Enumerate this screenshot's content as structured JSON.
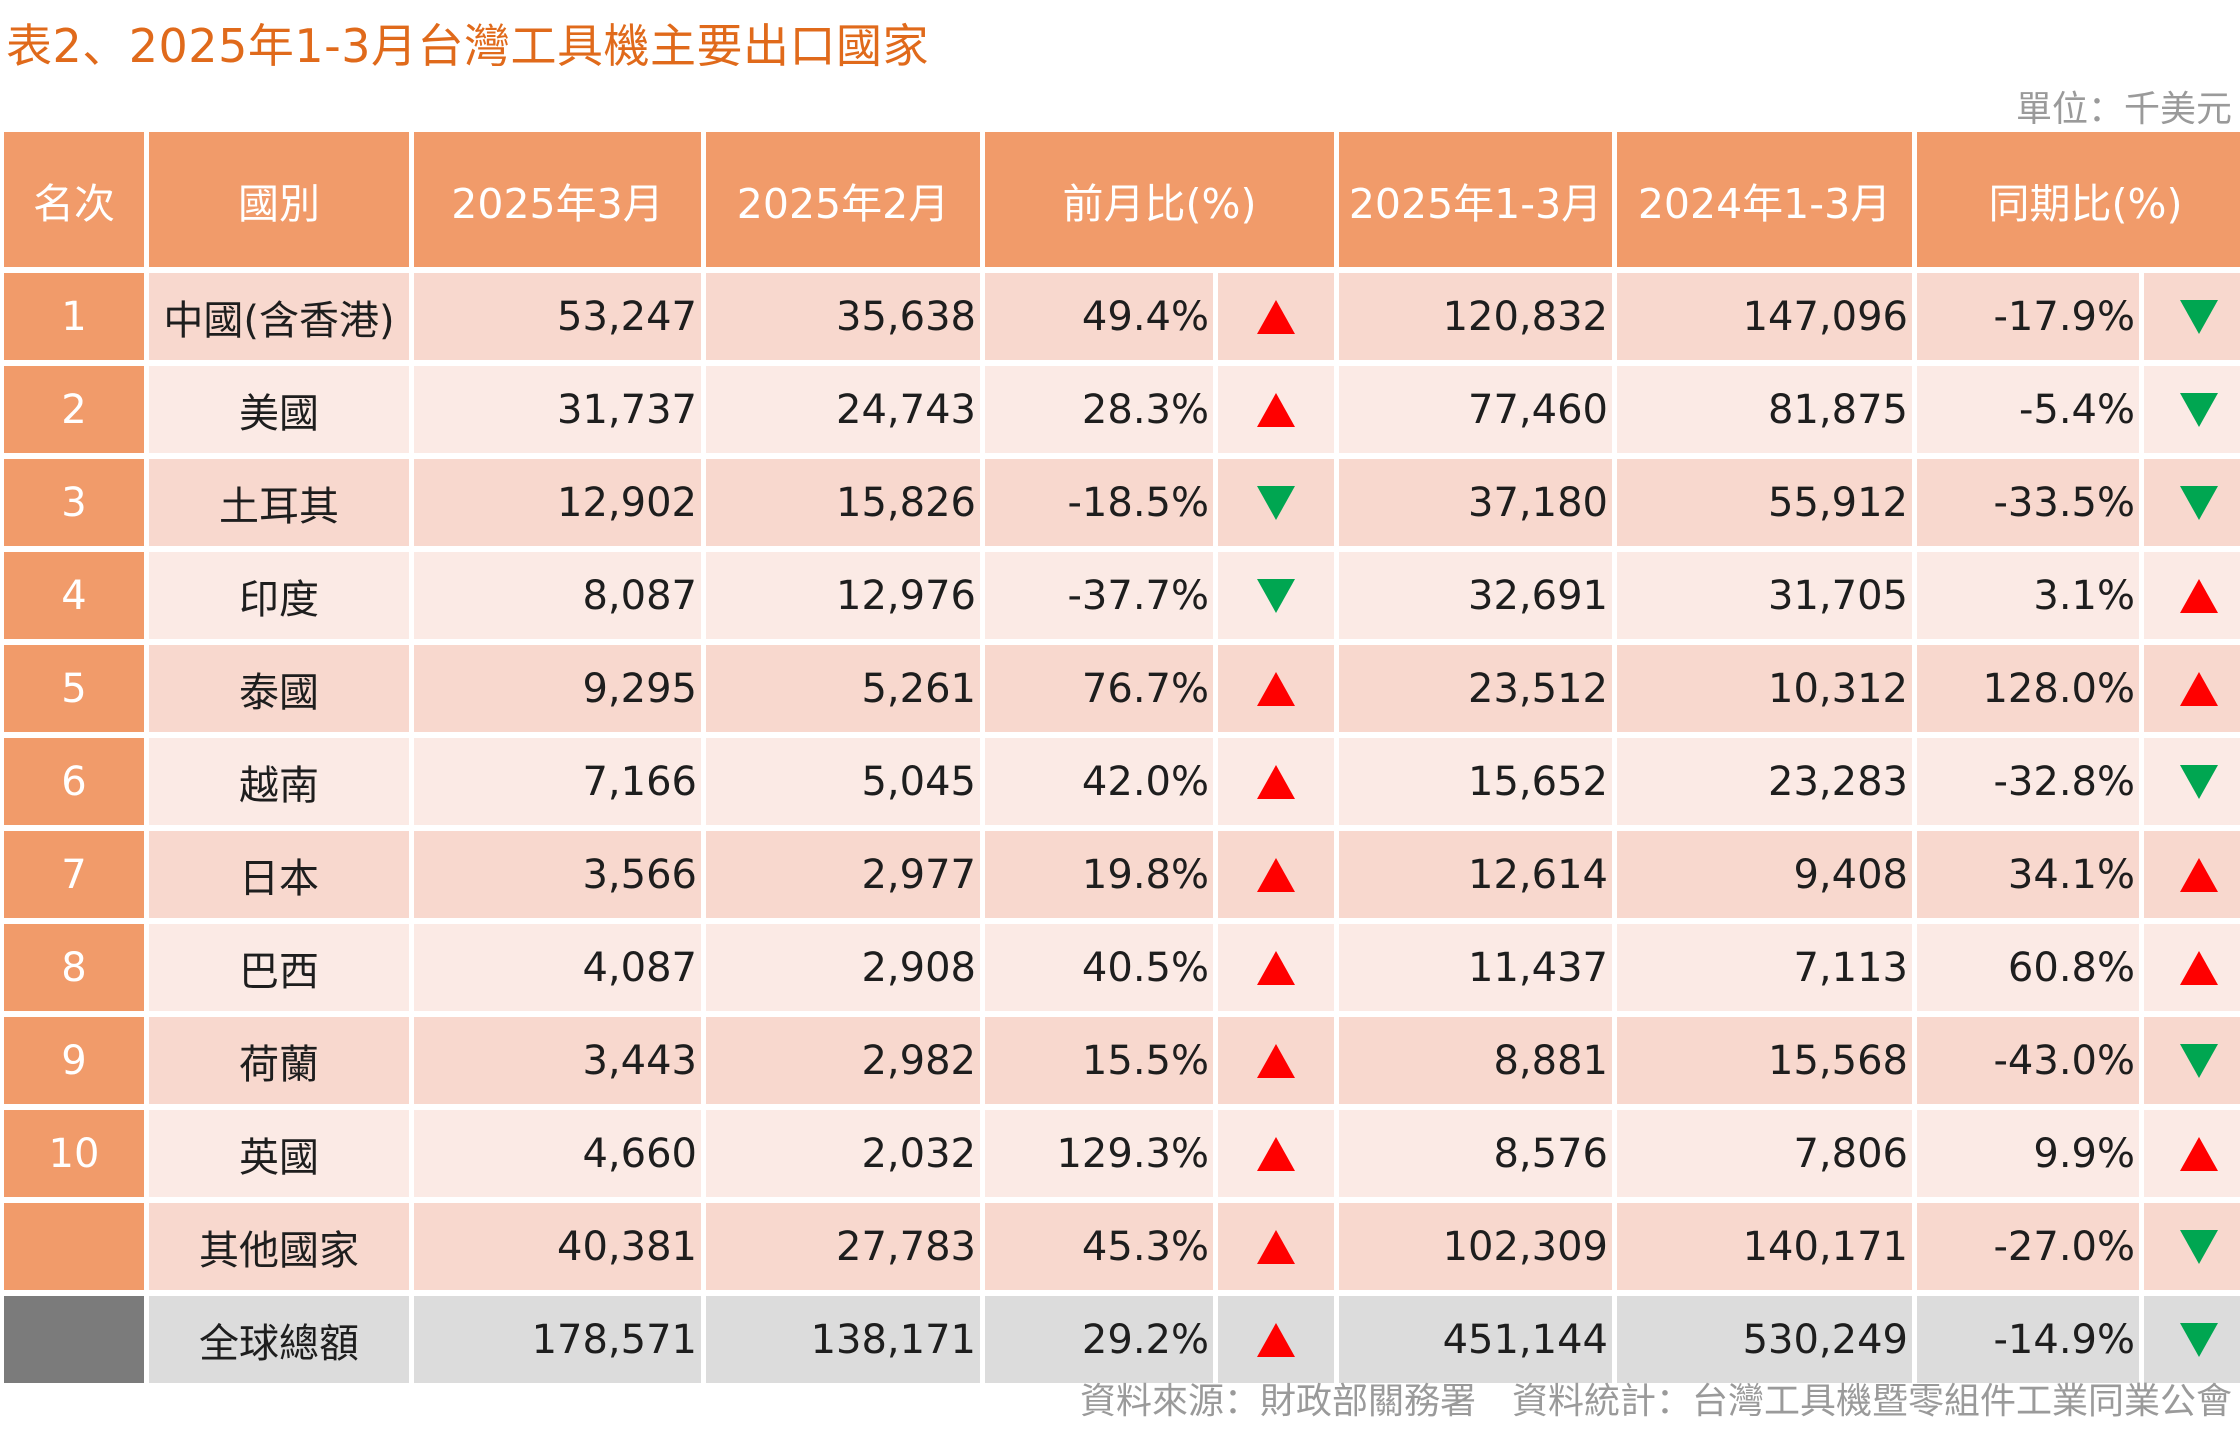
{
  "title": "表2、2025年1-3月台灣工具機主要出口國家",
  "unit": "單位：千美元",
  "source": "資料來源：財政部關務署　資料統計：台灣工具機暨零組件工業同業公會",
  "headers": {
    "rank": "名次",
    "country": "國別",
    "mar2025": "2025年3月",
    "feb2025": "2025年2月",
    "mom": "前月比(%)",
    "q1_2025": "2025年1-3月",
    "q1_2024": "2024年1-3月",
    "yoy": "同期比(%)"
  },
  "colors": {
    "header_bg": "#f19b6a",
    "up": "#ff0000",
    "down": "#00a651",
    "total_rank_bg": "#7b7b7b"
  },
  "rows": [
    {
      "rank": "1",
      "country": "中國(含香港)",
      "mar": "53,247",
      "feb": "35,638",
      "mom": "49.4%",
      "mom_dir": "up",
      "q1_2025": "120,832",
      "q1_2024": "147,096",
      "yoy": "-17.9%",
      "yoy_dir": "down"
    },
    {
      "rank": "2",
      "country": "美國",
      "mar": "31,737",
      "feb": "24,743",
      "mom": "28.3%",
      "mom_dir": "up",
      "q1_2025": "77,460",
      "q1_2024": "81,875",
      "yoy": "-5.4%",
      "yoy_dir": "down"
    },
    {
      "rank": "3",
      "country": "土耳其",
      "mar": "12,902",
      "feb": "15,826",
      "mom": "-18.5%",
      "mom_dir": "down",
      "q1_2025": "37,180",
      "q1_2024": "55,912",
      "yoy": "-33.5%",
      "yoy_dir": "down"
    },
    {
      "rank": "4",
      "country": "印度",
      "mar": "8,087",
      "feb": "12,976",
      "mom": "-37.7%",
      "mom_dir": "down",
      "q1_2025": "32,691",
      "q1_2024": "31,705",
      "yoy": "3.1%",
      "yoy_dir": "up"
    },
    {
      "rank": "5",
      "country": "泰國",
      "mar": "9,295",
      "feb": "5,261",
      "mom": "76.7%",
      "mom_dir": "up",
      "q1_2025": "23,512",
      "q1_2024": "10,312",
      "yoy": "128.0%",
      "yoy_dir": "up"
    },
    {
      "rank": "6",
      "country": "越南",
      "mar": "7,166",
      "feb": "5,045",
      "mom": "42.0%",
      "mom_dir": "up",
      "q1_2025": "15,652",
      "q1_2024": "23,283",
      "yoy": "-32.8%",
      "yoy_dir": "down"
    },
    {
      "rank": "7",
      "country": "日本",
      "mar": "3,566",
      "feb": "2,977",
      "mom": "19.8%",
      "mom_dir": "up",
      "q1_2025": "12,614",
      "q1_2024": "9,408",
      "yoy": "34.1%",
      "yoy_dir": "up"
    },
    {
      "rank": "8",
      "country": "巴西",
      "mar": "4,087",
      "feb": "2,908",
      "mom": "40.5%",
      "mom_dir": "up",
      "q1_2025": "11,437",
      "q1_2024": "7,113",
      "yoy": "60.8%",
      "yoy_dir": "up"
    },
    {
      "rank": "9",
      "country": "荷蘭",
      "mar": "3,443",
      "feb": "2,982",
      "mom": "15.5%",
      "mom_dir": "up",
      "q1_2025": "8,881",
      "q1_2024": "15,568",
      "yoy": "-43.0%",
      "yoy_dir": "down"
    },
    {
      "rank": "10",
      "country": "英國",
      "mar": "4,660",
      "feb": "2,032",
      "mom": "129.3%",
      "mom_dir": "up",
      "q1_2025": "8,576",
      "q1_2024": "7,806",
      "yoy": "9.9%",
      "yoy_dir": "up"
    },
    {
      "rank": "",
      "country": "其他國家",
      "mar": "40,381",
      "feb": "27,783",
      "mom": "45.3%",
      "mom_dir": "up",
      "q1_2025": "102,309",
      "q1_2024": "140,171",
      "yoy": "-27.0%",
      "yoy_dir": "down"
    },
    {
      "rank": "",
      "country": "全球總額",
      "mar": "178,571",
      "feb": "138,171",
      "mom": "29.2%",
      "mom_dir": "up",
      "q1_2025": "451,144",
      "q1_2024": "530,249",
      "yoy": "-14.9%",
      "yoy_dir": "down",
      "total": true
    }
  ]
}
